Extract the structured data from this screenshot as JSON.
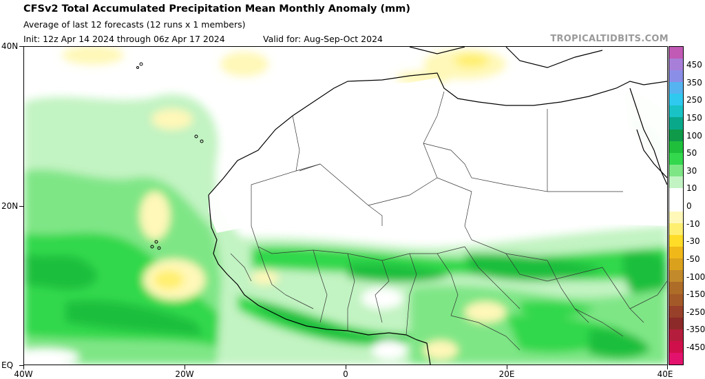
{
  "header": {
    "title": "CFSv2 Total Accumulated Precipitation Mean Monthly Anomaly (mm)",
    "subtitle": "Average of last 12 forecasts (12 runs x 1 members)",
    "init": "Init: 12z Apr 14 2024 through 06z Apr 17 2024",
    "valid": "Valid for: Aug-Sep-Oct 2024",
    "brand": "TROPICALTIDBITS.COM"
  },
  "axes": {
    "y_labels": [
      "40N",
      "20N",
      "EQ"
    ],
    "x_labels": [
      "40W",
      "20W",
      "0",
      "20E",
      "40E"
    ]
  },
  "colorbar": {
    "labels": [
      "450",
      "350",
      "250",
      "150",
      "100",
      "50",
      "30",
      "10",
      "0",
      "-10",
      "-30",
      "-50",
      "-100",
      "-150",
      "-250",
      "-350",
      "-450"
    ],
    "colors": [
      "#c05ab4",
      "#a77fd8",
      "#8a8ee6",
      "#55b4f0",
      "#2fc8ee",
      "#19c2c4",
      "#0aa88a",
      "#0f9a4a",
      "#1fbf3c",
      "#33d84c",
      "#7fe686",
      "#c2f3c2",
      "#ffffff",
      "#ffffff",
      "#fff8b8",
      "#ffef70",
      "#ffdc28",
      "#f0b818",
      "#d9a11c",
      "#c28a2a",
      "#ad6d28",
      "#a35a28",
      "#98402a",
      "#8c2a2a",
      "#b41e3c",
      "#d0104a",
      "#e3126d"
    ]
  }
}
